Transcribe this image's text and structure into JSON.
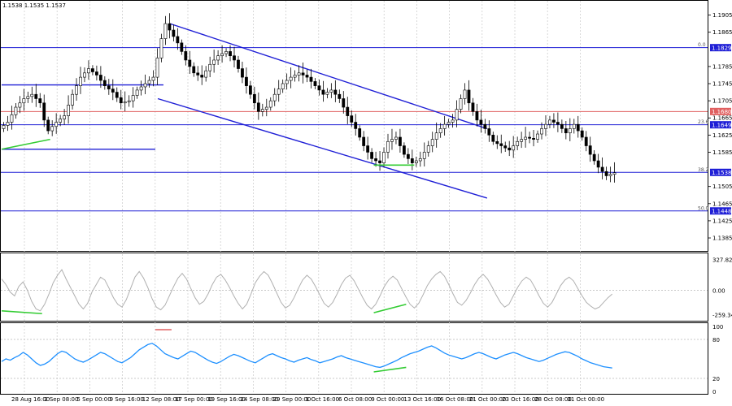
{
  "header": {
    "symbol_info": "1.1538 1.1535 1.1537"
  },
  "colors": {
    "level_blue": "#1f1fd6",
    "level_red": "#e06060",
    "candle": "#000000",
    "cci": "#b0b0b0",
    "rsi": "#1e90ff",
    "divergence": "#33cc33",
    "grid": "#c8c8c8"
  },
  "chart_data": {
    "type": "line",
    "price_axis": {
      "ticks": [
        "1.1905",
        "1.1865",
        "1.1829",
        "1.1785",
        "1.1745",
        "1.1705",
        "1.1680",
        "1.1665",
        "1.1649",
        "1.1625",
        "1.1585",
        "1.1538",
        "1.1505",
        "1.1465",
        "1.1448",
        "1.1425",
        "1.1385"
      ],
      "range": [
        1.1368,
        1.1925
      ]
    },
    "date_labels": [
      "28 Aug 16:00",
      "2 Sep 08:00",
      "5 Sep 00:00",
      "9 Sep 16:00",
      "12 Sep 08:00",
      "17 Sep 00:00",
      "19 Sep 16:00",
      "24 Sep 08:00",
      "29 Sep 00:00",
      "1 Oct 16:00",
      "6 Oct 08:00",
      "9 Oct 00:00",
      "13 Oct 16:00",
      "16 Oct 08:00",
      "21 Oct 00:00",
      "23 Oct 16:00",
      "28 Oct 08:00",
      "31 Oct 00:00"
    ],
    "levels": [
      {
        "label": "1.1829",
        "value": 1.1829,
        "fib": "0.0",
        "color": "blue"
      },
      {
        "label": "1.1680",
        "value": 1.168,
        "fib": "",
        "color": "red"
      },
      {
        "label": "1.1649",
        "value": 1.1649,
        "fib": "23.6",
        "color": "blue"
      },
      {
        "label": "1.1538",
        "value": 1.1538,
        "fib": "38.2",
        "color": "blue"
      },
      {
        "label": "1.1448",
        "value": 1.1448,
        "fib": "50.0",
        "color": "blue"
      }
    ],
    "price_path": [
      [
        0,
        1.164
      ],
      [
        2,
        1.1655
      ],
      [
        4,
        1.169
      ],
      [
        6,
        1.171
      ],
      [
        8,
        1.172
      ],
      [
        10,
        1.17
      ],
      [
        11,
        1.166
      ],
      [
        12,
        1.1635
      ],
      [
        14,
        1.1655
      ],
      [
        16,
        1.167
      ],
      [
        18,
        1.172
      ],
      [
        20,
        1.176
      ],
      [
        22,
        1.178
      ],
      [
        24,
        1.1765
      ],
      [
        26,
        1.174
      ],
      [
        28,
        1.1725
      ],
      [
        30,
        1.17
      ],
      [
        32,
        1.1705
      ],
      [
        34,
        1.173
      ],
      [
        36,
        1.1745
      ],
      [
        38,
        1.176
      ],
      [
        40,
        1.185
      ],
      [
        41,
        1.1885
      ],
      [
        42,
        1.187
      ],
      [
        44,
        1.184
      ],
      [
        46,
        1.18
      ],
      [
        48,
        1.177
      ],
      [
        50,
        1.176
      ],
      [
        52,
        1.179
      ],
      [
        54,
        1.181
      ],
      [
        56,
        1.182
      ],
      [
        58,
        1.18
      ],
      [
        60,
        1.176
      ],
      [
        62,
        1.172
      ],
      [
        64,
        1.168
      ],
      [
        66,
        1.169
      ],
      [
        68,
        1.172
      ],
      [
        70,
        1.1745
      ],
      [
        72,
        1.176
      ],
      [
        74,
        1.177
      ],
      [
        76,
        1.176
      ],
      [
        78,
        1.174
      ],
      [
        80,
        1.172
      ],
      [
        82,
        1.173
      ],
      [
        84,
        1.171
      ],
      [
        86,
        1.167
      ],
      [
        88,
        1.164
      ],
      [
        90,
        1.16
      ],
      [
        92,
        1.157
      ],
      [
        94,
        1.156
      ],
      [
        96,
        1.161
      ],
      [
        98,
        1.162
      ],
      [
        100,
        1.158
      ],
      [
        102,
        1.156
      ],
      [
        104,
        1.157
      ],
      [
        106,
        1.16
      ],
      [
        108,
        1.163
      ],
      [
        110,
        1.165
      ],
      [
        112,
        1.166
      ],
      [
        114,
        1.171
      ],
      [
        115,
        1.173
      ],
      [
        116,
        1.17
      ],
      [
        118,
        1.166
      ],
      [
        120,
        1.164
      ],
      [
        122,
        1.161
      ],
      [
        124,
        1.16
      ],
      [
        126,
        1.159
      ],
      [
        128,
        1.161
      ],
      [
        130,
        1.162
      ],
      [
        132,
        1.1615
      ],
      [
        134,
        1.164
      ],
      [
        136,
        1.166
      ],
      [
        138,
        1.165
      ],
      [
        140,
        1.163
      ],
      [
        142,
        1.165
      ],
      [
        144,
        1.162
      ],
      [
        146,
        1.158
      ],
      [
        148,
        1.155
      ],
      [
        150,
        1.153
      ],
      [
        152,
        1.1537
      ]
    ],
    "channel_upper": [
      [
        41,
        1.1885
      ],
      [
        120,
        1.164
      ]
    ],
    "channel_lower": [
      [
        38,
        1.171
      ],
      [
        120,
        1.1478
      ]
    ],
    "horizontal_lines": [
      {
        "from": 0,
        "to": 40,
        "value": 1.1742
      },
      {
        "from": 0,
        "to": 38,
        "value": 1.1592
      }
    ],
    "cci": {
      "ticks": [
        "327.826",
        "0.00",
        "-259.342"
      ],
      "range": [
        -300,
        360
      ],
      "values": [
        120,
        60,
        -20,
        -60,
        40,
        90,
        0,
        -120,
        -200,
        -220,
        -150,
        -40,
        80,
        160,
        220,
        120,
        30,
        -60,
        -150,
        -200,
        -140,
        -20,
        60,
        140,
        110,
        20,
        -80,
        -150,
        -180,
        -100,
        20,
        140,
        200,
        130,
        30,
        -90,
        -180,
        -210,
        -160,
        -60,
        40,
        130,
        180,
        120,
        20,
        -80,
        -150,
        -120,
        -40,
        60,
        140,
        170,
        110,
        30,
        -60,
        -140,
        -200,
        -150,
        -40,
        80,
        150,
        200,
        160,
        70,
        -30,
        -130,
        -190,
        -160,
        -80,
        20,
        110,
        160,
        120,
        40,
        -50,
        -140,
        -180,
        -130,
        -40,
        60,
        130,
        160,
        100,
        10,
        -80,
        -160,
        -200,
        -150,
        -60,
        40,
        110,
        150,
        110,
        20,
        -70,
        -150,
        -190,
        -140,
        -50,
        50,
        120,
        170,
        200,
        150,
        60,
        -40,
        -130,
        -160,
        -110,
        -30,
        60,
        130,
        170,
        120,
        40,
        -50,
        -130,
        -180,
        -150,
        -60,
        30,
        100,
        140,
        110,
        30,
        -60,
        -140,
        -180,
        -130,
        -40,
        50,
        110,
        140,
        100,
        20,
        -60,
        -130,
        -170,
        -200,
        -180,
        -130,
        -80,
        -40
      ]
    },
    "rsi": {
      "ticks": [
        "100",
        "80",
        "20",
        "0"
      ],
      "range": [
        0,
        100
      ],
      "values": [
        46,
        50,
        48,
        52,
        55,
        60,
        56,
        50,
        44,
        40,
        42,
        46,
        52,
        58,
        62,
        60,
        55,
        50,
        47,
        45,
        48,
        52,
        56,
        60,
        58,
        54,
        50,
        46,
        44,
        48,
        52,
        58,
        64,
        68,
        72,
        74,
        70,
        64,
        58,
        55,
        52,
        50,
        54,
        58,
        62,
        60,
        56,
        52,
        48,
        45,
        43,
        46,
        50,
        54,
        57,
        55,
        52,
        49,
        46,
        44,
        48,
        52,
        56,
        58,
        55,
        52,
        50,
        47,
        45,
        48,
        50,
        52,
        49,
        47,
        44,
        46,
        48,
        50,
        53,
        55,
        52,
        50,
        48,
        46,
        44,
        42,
        40,
        38,
        37,
        39,
        42,
        45,
        48,
        52,
        55,
        58,
        60,
        62,
        65,
        68,
        70,
        67,
        63,
        59,
        56,
        54,
        52,
        50,
        52,
        55,
        58,
        60,
        58,
        55,
        52,
        50,
        53,
        56,
        58,
        60,
        58,
        55,
        52,
        50,
        48,
        46,
        48,
        51,
        54,
        57,
        59,
        61,
        60,
        57,
        54,
        50,
        47,
        44,
        42,
        40,
        38,
        37,
        36
      ]
    },
    "divergences": [
      {
        "pane": "price",
        "from": [
          0,
          1.1592
        ],
        "to": [
          12,
          1.1615
        ]
      },
      {
        "pane": "price",
        "from": [
          92,
          1.1555
        ],
        "to": [
          102,
          1.1555
        ]
      },
      {
        "pane": "cci",
        "from": [
          0,
          -220
        ],
        "to": [
          10,
          -250
        ]
      },
      {
        "pane": "cci",
        "from": [
          92,
          -240
        ],
        "to": [
          100,
          -150
        ]
      },
      {
        "pane": "rsi",
        "from": [
          92,
          30
        ],
        "to": [
          100,
          37
        ]
      },
      {
        "pane": "rsi",
        "red": true,
        "from": [
          38,
          95
        ],
        "to": [
          42,
          95
        ]
      }
    ]
  }
}
